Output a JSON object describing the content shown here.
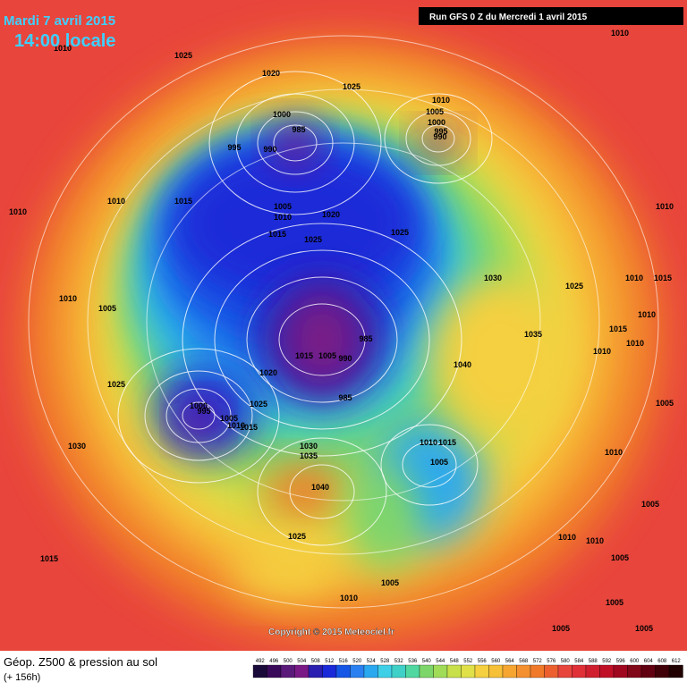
{
  "header": {
    "date": "Mardi 7 avril 2015",
    "time": "14:00 locale",
    "run": "Run GFS 0 Z du Mercredi 1 avril 2015"
  },
  "footer": {
    "title": "Géop. Z500 & pression au sol",
    "subtitle": "(+ 156h)",
    "copyright": "Copyright © 2015 Meteociel.fr"
  },
  "legend": {
    "levels": [
      492,
      496,
      500,
      504,
      508,
      512,
      516,
      520,
      524,
      528,
      532,
      536,
      540,
      544,
      548,
      552,
      556,
      560,
      564,
      568,
      572,
      576,
      580,
      584,
      588,
      592,
      596,
      600,
      604,
      608,
      612
    ]
  },
  "isobar_labels": [
    "1010",
    "1025",
    "1020",
    "1025",
    "1010",
    "1010",
    "1005",
    "1000",
    "995",
    "990",
    "1000",
    "985",
    "995",
    "990",
    "1010",
    "1015",
    "1005",
    "1010",
    "1020",
    "1010",
    "1010",
    "1015",
    "1025",
    "1025",
    "1030",
    "1025",
    "1010",
    "1015",
    "1010",
    "1005",
    "1010",
    "1015",
    "1035",
    "1010",
    "1010",
    "985",
    "1015",
    "1005",
    "990",
    "1040",
    "1020",
    "1025",
    "985",
    "1000",
    "995",
    "1005",
    "1025",
    "1010",
    "1015",
    "1005",
    "1030",
    "1030",
    "1035",
    "1010",
    "1015",
    "1005",
    "1010",
    "1040",
    "1005",
    "1025",
    "1010",
    "1010",
    "1005",
    "1015",
    "1005",
    "1010",
    "1005",
    "1005",
    "1005"
  ]
}
